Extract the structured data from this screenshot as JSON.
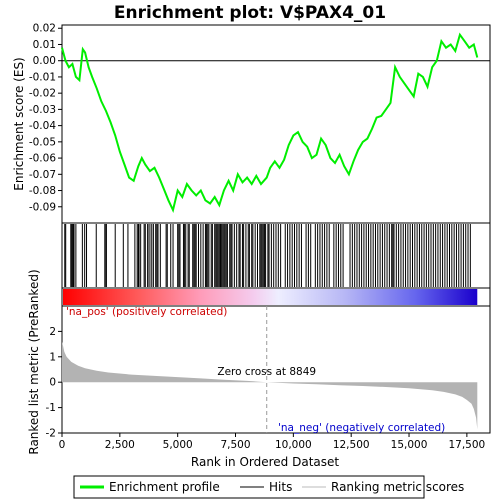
{
  "chart_data": {
    "type": "line",
    "title": "Enrichment plot: V$PAX4_01",
    "es_panel": {
      "ylabel": "Enrichment score (ES)",
      "ylim": [
        -0.1,
        0.022
      ],
      "yticks": [
        0.02,
        0.01,
        0.0,
        -0.01,
        -0.02,
        -0.03,
        -0.04,
        -0.05,
        -0.06,
        -0.07,
        -0.08,
        -0.09
      ],
      "ytick_labels": [
        "0.02",
        "0.01",
        "0.00",
        "-0.01",
        "-0.02",
        "-0.03",
        "-0.04",
        "-0.05",
        "-0.06",
        "-0.07",
        "-0.08",
        "-0.09"
      ],
      "series": [
        {
          "name": "Enrichment profile",
          "color": "#00ee00",
          "x": [
            0,
            150,
            300,
            450,
            600,
            750,
            900,
            1000,
            1150,
            1300,
            1500,
            1700,
            1900,
            2100,
            2300,
            2500,
            2700,
            2900,
            3100,
            3300,
            3450,
            3600,
            3800,
            4000,
            4200,
            4400,
            4600,
            4800,
            5000,
            5200,
            5400,
            5600,
            5800,
            6000,
            6200,
            6400,
            6600,
            6800,
            7000,
            7200,
            7400,
            7600,
            7800,
            8000,
            8200,
            8400,
            8600,
            8850,
            9000,
            9200,
            9400,
            9600,
            9800,
            10000,
            10200,
            10400,
            10600,
            10800,
            11000,
            11200,
            11400,
            11600,
            11800,
            12000,
            12200,
            12400,
            12600,
            12800,
            13000,
            13200,
            13400,
            13600,
            13800,
            14000,
            14200,
            14400,
            14600,
            14800,
            15000,
            15200,
            15400,
            15600,
            15800,
            16000,
            16200,
            16400,
            16600,
            16800,
            17000,
            17200,
            17400,
            17600,
            17800,
            17950
          ],
          "y": [
            0.008,
            0.0,
            -0.004,
            -0.002,
            -0.01,
            -0.012,
            0.007,
            0.005,
            -0.004,
            -0.01,
            -0.017,
            -0.025,
            -0.031,
            -0.038,
            -0.046,
            -0.056,
            -0.064,
            -0.072,
            -0.074,
            -0.065,
            -0.06,
            -0.064,
            -0.068,
            -0.066,
            -0.072,
            -0.079,
            -0.086,
            -0.092,
            -0.08,
            -0.084,
            -0.076,
            -0.08,
            -0.083,
            -0.08,
            -0.086,
            -0.088,
            -0.084,
            -0.089,
            -0.08,
            -0.074,
            -0.08,
            -0.07,
            -0.075,
            -0.072,
            -0.076,
            -0.071,
            -0.076,
            -0.072,
            -0.066,
            -0.062,
            -0.066,
            -0.061,
            -0.052,
            -0.046,
            -0.044,
            -0.05,
            -0.053,
            -0.06,
            -0.058,
            -0.048,
            -0.052,
            -0.06,
            -0.063,
            -0.058,
            -0.065,
            -0.07,
            -0.062,
            -0.055,
            -0.05,
            -0.048,
            -0.042,
            -0.035,
            -0.034,
            -0.03,
            -0.026,
            -0.004,
            -0.01,
            -0.014,
            -0.018,
            -0.022,
            -0.008,
            -0.01,
            -0.016,
            -0.004,
            0.0,
            0.012,
            0.008,
            0.01,
            0.006,
            0.016,
            0.012,
            0.008,
            0.01,
            0.002
          ]
        }
      ],
      "zero_line": true
    },
    "hits_panel": {
      "label": "Hits",
      "gene_hit_ranks": [
        120,
        160,
        380,
        420,
        460,
        480,
        520,
        600,
        880,
        980,
        1060,
        1480,
        1850,
        1900,
        1920,
        2300,
        2650,
        2850,
        3150,
        3250,
        3300,
        3330,
        3400,
        3550,
        3600,
        3700,
        3720,
        3800,
        3880,
        3950,
        4050,
        4100,
        4150,
        4250,
        4500,
        4550,
        4700,
        4800,
        5000,
        5050,
        5100,
        5250,
        5300,
        5350,
        5450,
        5500,
        5650,
        5700,
        5750,
        5800,
        5900,
        6000,
        6100,
        6200,
        6250,
        6300,
        6350,
        6450,
        6500,
        6600,
        6650,
        6700,
        6750,
        6800,
        6850,
        6900,
        6950,
        7000,
        7050,
        7100,
        7150,
        7250,
        7300,
        7350,
        7450,
        7550,
        7650,
        7700,
        7800,
        7850,
        7950,
        8050,
        8100,
        8200,
        8250,
        8350,
        8450,
        8550,
        8600,
        8650,
        8700,
        8750,
        8800,
        8900,
        8950,
        9050,
        9150,
        9250,
        9350,
        9450,
        9650,
        9750,
        9850,
        9950,
        10050,
        10150,
        10250,
        10350,
        10550,
        10650,
        10750,
        10950,
        11050,
        11150,
        11250,
        11350,
        11450,
        11550,
        11750,
        11850,
        11950,
        12050,
        12150,
        12450,
        12550,
        12650,
        12750,
        12850,
        12950,
        13050,
        13150,
        13250,
        13350,
        13450,
        13550,
        13650,
        13750,
        13850,
        13950,
        14050,
        14150,
        14250,
        14300,
        14350,
        14450,
        14550,
        14650,
        14750,
        14850,
        14950,
        15050,
        15150,
        15250,
        15350,
        15450,
        15550,
        15650,
        15750,
        15850,
        15950,
        16050,
        16150,
        16250,
        16350,
        16450,
        16550,
        16650,
        16750,
        16850,
        16950,
        17050,
        17150,
        17250,
        17350,
        17450,
        17550,
        17650
      ]
    },
    "ranked_metric_panel": {
      "ylabel": "Ranked list metric (PreRanked)",
      "ylim": [
        -2,
        3
      ],
      "yticks": [
        2,
        1,
        0,
        -1,
        -2
      ],
      "ytick_labels": [
        "2",
        "1",
        "0",
        "-1",
        "-2"
      ],
      "x": [
        0,
        50,
        100,
        200,
        400,
        700,
        1000,
        1500,
        2000,
        3000,
        4000,
        5000,
        6000,
        7000,
        8000,
        8849,
        10000,
        11000,
        12000,
        13000,
        14000,
        15000,
        16000,
        16500,
        17000,
        17300,
        17500,
        17700,
        17800,
        17900,
        17950
      ],
      "values": [
        1.6,
        1.4,
        1.2,
        1.0,
        0.8,
        0.65,
        0.55,
        0.45,
        0.38,
        0.3,
        0.25,
        0.2,
        0.15,
        0.1,
        0.05,
        0.0,
        -0.05,
        -0.08,
        -0.12,
        -0.15,
        -0.19,
        -0.24,
        -0.32,
        -0.38,
        -0.48,
        -0.58,
        -0.7,
        -0.85,
        -1.05,
        -1.4,
        -1.85
      ],
      "pos_label": "'na_pos' (positively correlated)",
      "neg_label": "'na_neg' (negatively correlated)",
      "zero_cross_label": "Zero cross at 8849",
      "zero_cross_rank": 8849
    },
    "xlabel": "Rank in Ordered Dataset",
    "xlim": [
      0,
      18500
    ],
    "xticks": [
      0,
      2500,
      5000,
      7500,
      10000,
      12500,
      15000,
      17500
    ],
    "xtick_labels": [
      "0",
      "2,500",
      "5,000",
      "7,500",
      "10,000",
      "12,500",
      "15,000",
      "17,500"
    ],
    "n_genes": 17950,
    "legend": {
      "items": [
        {
          "label": "Enrichment profile",
          "color": "#00ee00"
        },
        {
          "label": "Hits",
          "color": "#000000"
        },
        {
          "label": "Ranking metric scores",
          "color": "#bbbbbb"
        }
      ],
      "placement": "bottom"
    }
  }
}
